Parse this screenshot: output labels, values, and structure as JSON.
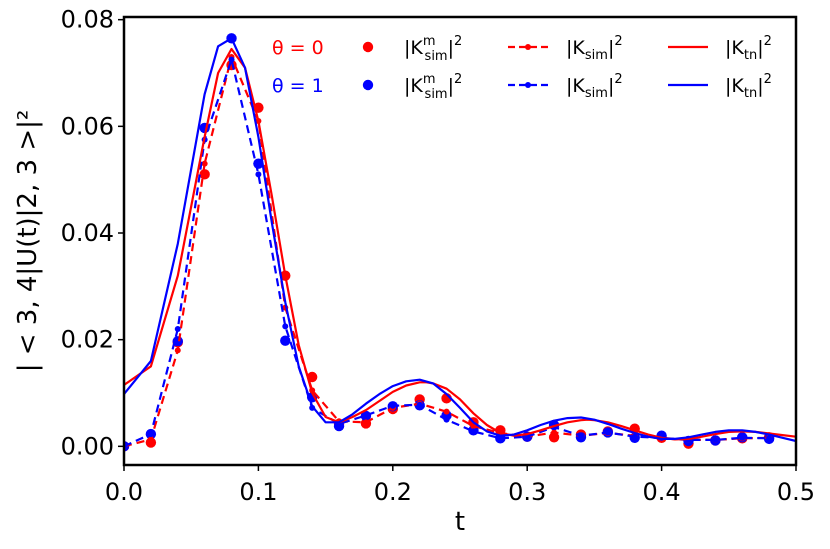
{
  "chart_data": {
    "type": "line",
    "xlabel": "t",
    "ylabel": "| < 3, 4|U(t)|2, 3 >|²",
    "xlim": [
      0.0,
      0.5
    ],
    "ylim": [
      -0.0035,
      0.0805
    ],
    "x_ticks": [
      0.0,
      0.1,
      0.2,
      0.3,
      0.4,
      0.5
    ],
    "x_tick_labels": [
      "0.0",
      "0.1",
      "0.2",
      "0.3",
      "0.4",
      "0.5"
    ],
    "y_ticks": [
      0.0,
      0.02,
      0.04,
      0.06,
      0.08
    ],
    "y_tick_labels": [
      "0.00",
      "0.02",
      "0.04",
      "0.06",
      "0.08"
    ],
    "grid": false,
    "legend_position": "top",
    "legend": {
      "theta_labels": [
        {
          "text": "θ = 0",
          "color": "#ff0000"
        },
        {
          "text": "θ = 1",
          "color": "#0000ff"
        }
      ],
      "entries": [
        {
          "base": "|K",
          "sup": "m",
          "sub": "sim",
          "tail": "|",
          "power": "2",
          "color": "#ff0000",
          "style": "marker"
        },
        {
          "base": "|K",
          "sup": "m",
          "sub": "sim",
          "tail": "|",
          "power": "2",
          "color": "#0000ff",
          "style": "marker"
        },
        {
          "base": "|K",
          "sup": "",
          "sub": "sim",
          "tail": "|",
          "power": "2",
          "color": "#ff0000",
          "style": "dashed"
        },
        {
          "base": "|K",
          "sup": "",
          "sub": "sim",
          "tail": "|",
          "power": "2",
          "color": "#0000ff",
          "style": "dashed"
        },
        {
          "base": "|K",
          "sup": "",
          "sub": "tn",
          "tail": "|",
          "power": "2",
          "color": "#ff0000",
          "style": "solid"
        },
        {
          "base": "|K",
          "sup": "",
          "sub": "tn",
          "tail": "|",
          "power": "2",
          "color": "#0000ff",
          "style": "solid"
        }
      ]
    },
    "series": [
      {
        "style": "marker",
        "color": "#ff0000",
        "x": [
          0.0,
          0.02,
          0.04,
          0.06,
          0.08,
          0.1,
          0.12,
          0.14,
          0.16,
          0.18,
          0.2,
          0.22,
          0.24,
          0.26,
          0.28,
          0.3,
          0.32,
          0.34,
          0.36,
          0.38,
          0.4,
          0.42,
          0.44,
          0.46,
          0.48
        ],
        "y": [
          0.0,
          0.0007,
          0.0195,
          0.051,
          0.0715,
          0.0635,
          0.032,
          0.013,
          0.0042,
          0.0043,
          0.007,
          0.0088,
          0.009,
          0.0045,
          0.003,
          0.0018,
          0.0017,
          0.0022,
          0.0028,
          0.0033,
          0.0016,
          0.0005,
          0.0011,
          0.0015,
          0.0017
        ]
      },
      {
        "style": "marker",
        "color": "#0000ff",
        "x": [
          0.0,
          0.02,
          0.04,
          0.06,
          0.08,
          0.1,
          0.12,
          0.14,
          0.16,
          0.18,
          0.2,
          0.22,
          0.24,
          0.26,
          0.28,
          0.3,
          0.32,
          0.34,
          0.36,
          0.38,
          0.4,
          0.42,
          0.44,
          0.46,
          0.48
        ],
        "y": [
          0.0,
          0.0023,
          0.0197,
          0.0597,
          0.0765,
          0.053,
          0.0198,
          0.0092,
          0.0038,
          0.0057,
          0.0075,
          0.0077,
          0.0058,
          0.003,
          0.0015,
          0.0018,
          0.004,
          0.0017,
          0.0026,
          0.0016,
          0.002,
          0.001,
          0.0011,
          0.0017,
          0.0014
        ]
      },
      {
        "style": "dashed",
        "color": "#ff0000",
        "x": [
          0.0,
          0.02,
          0.04,
          0.06,
          0.08,
          0.1,
          0.12,
          0.14,
          0.16,
          0.18,
          0.2,
          0.22,
          0.24,
          0.26,
          0.28,
          0.3,
          0.32,
          0.34,
          0.36,
          0.38,
          0.4,
          0.42,
          0.44,
          0.46,
          0.48
        ],
        "y": [
          0.0,
          0.0013,
          0.018,
          0.053,
          0.073,
          0.061,
          0.026,
          0.0105,
          0.0047,
          0.0045,
          0.0072,
          0.008,
          0.0065,
          0.0038,
          0.0025,
          0.0018,
          0.0026,
          0.002,
          0.0025,
          0.002,
          0.0015,
          0.0012,
          0.0012,
          0.0015,
          0.0016
        ]
      },
      {
        "style": "dashed",
        "color": "#0000ff",
        "x": [
          0.0,
          0.02,
          0.04,
          0.06,
          0.08,
          0.1,
          0.12,
          0.14,
          0.16,
          0.18,
          0.2,
          0.22,
          0.24,
          0.26,
          0.28,
          0.3,
          0.32,
          0.34,
          0.36,
          0.38,
          0.4,
          0.42,
          0.44,
          0.46,
          0.48
        ],
        "y": [
          0.0,
          0.0023,
          0.022,
          0.0575,
          0.0725,
          0.051,
          0.0225,
          0.0072,
          0.0042,
          0.0058,
          0.0076,
          0.0078,
          0.005,
          0.0028,
          0.0015,
          0.0018,
          0.0036,
          0.002,
          0.0026,
          0.0018,
          0.0016,
          0.0012,
          0.0012,
          0.0016,
          0.0015
        ]
      },
      {
        "style": "solid",
        "color": "#ff0000",
        "x": [
          0.0,
          0.02,
          0.04,
          0.06,
          0.07,
          0.08,
          0.09,
          0.1,
          0.11,
          0.12,
          0.13,
          0.14,
          0.15,
          0.16,
          0.17,
          0.18,
          0.19,
          0.2,
          0.21,
          0.22,
          0.225,
          0.23,
          0.24,
          0.25,
          0.26,
          0.27,
          0.28,
          0.29,
          0.3,
          0.31,
          0.32,
          0.33,
          0.34,
          0.345,
          0.35,
          0.36,
          0.37,
          0.38,
          0.39,
          0.4,
          0.41,
          0.42,
          0.43,
          0.44,
          0.45,
          0.46,
          0.47,
          0.48,
          0.49,
          0.5
        ],
        "y": [
          0.0115,
          0.015,
          0.032,
          0.058,
          0.07,
          0.0745,
          0.071,
          0.061,
          0.047,
          0.032,
          0.019,
          0.01,
          0.0055,
          0.0045,
          0.0055,
          0.0068,
          0.0085,
          0.0102,
          0.0114,
          0.012,
          0.012,
          0.0118,
          0.0108,
          0.0088,
          0.0062,
          0.004,
          0.0025,
          0.002,
          0.0023,
          0.003,
          0.0038,
          0.0045,
          0.0049,
          0.005,
          0.0049,
          0.0045,
          0.0038,
          0.003,
          0.0022,
          0.0016,
          0.0013,
          0.0014,
          0.0018,
          0.0023,
          0.0027,
          0.0028,
          0.0027,
          0.0024,
          0.0021,
          0.0018
        ]
      },
      {
        "style": "solid",
        "color": "#0000ff",
        "x": [
          0.0,
          0.02,
          0.04,
          0.06,
          0.07,
          0.08,
          0.09,
          0.1,
          0.11,
          0.12,
          0.13,
          0.14,
          0.15,
          0.16,
          0.17,
          0.18,
          0.19,
          0.2,
          0.21,
          0.22,
          0.23,
          0.24,
          0.25,
          0.26,
          0.27,
          0.28,
          0.29,
          0.3,
          0.31,
          0.32,
          0.33,
          0.34,
          0.35,
          0.36,
          0.37,
          0.38,
          0.39,
          0.4,
          0.41,
          0.42,
          0.43,
          0.44,
          0.45,
          0.46,
          0.47,
          0.48,
          0.49,
          0.5
        ],
        "y": [
          0.0098,
          0.016,
          0.038,
          0.066,
          0.075,
          0.0765,
          0.071,
          0.058,
          0.042,
          0.027,
          0.015,
          0.0075,
          0.0045,
          0.0045,
          0.006,
          0.008,
          0.0098,
          0.0113,
          0.0122,
          0.0125,
          0.0118,
          0.0098,
          0.0072,
          0.0045,
          0.0028,
          0.002,
          0.0022,
          0.003,
          0.004,
          0.0048,
          0.0053,
          0.0054,
          0.005,
          0.0042,
          0.0033,
          0.0025,
          0.0018,
          0.0014,
          0.0014,
          0.0017,
          0.0022,
          0.0027,
          0.003,
          0.003,
          0.0027,
          0.0022,
          0.0016,
          0.001
        ]
      }
    ]
  }
}
